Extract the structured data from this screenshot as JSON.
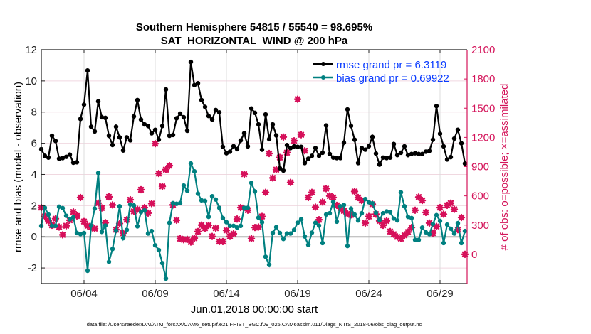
{
  "chart_data": {
    "type": "line",
    "title": "Southern Hemisphere 54815 / 55540 = 98.695%",
    "subtitle": "SAT_HORIZONTAL_WIND @ 200 hPa",
    "xlabel": "Jun.01,2018 00:00:00 start",
    "ylabel": "rmse and bias (model - observation)",
    "ylabel_right": "# of obs: o=possible; ×=assimilated",
    "x_start": "2018-06-01 00:00",
    "x_step_hours": 6,
    "x_ticks": [
      {
        "date": "2018-06-04",
        "label": "06/04"
      },
      {
        "date": "2018-06-09",
        "label": "06/09"
      },
      {
        "date": "2018-06-14",
        "label": "06/14"
      },
      {
        "date": "2018-06-19",
        "label": "06/19"
      },
      {
        "date": "2018-06-24",
        "label": "06/24"
      },
      {
        "date": "2018-06-29",
        "label": "06/29"
      }
    ],
    "ylim": [
      -3,
      12
    ],
    "yticks": [
      "-2",
      "0",
      "2",
      "4",
      "6",
      "8",
      "10",
      "12"
    ],
    "ylim_right": [
      -300,
      2100
    ],
    "yticks_right": [
      "0",
      "300",
      "600",
      "900",
      "1200",
      "1500",
      "1800",
      "2100"
    ],
    "grid": true,
    "legend_position": "top-right",
    "footer": "data file: /Users/raeder/DAI/ATM_forcXX/CAM6_setup/f.e21.FHIST_BGC.f09_025.CAM6assim.011/Diags_NTrS_2018-06/obs_diag_output.nc",
    "colors": {
      "rmse": "#000000",
      "bias": "#008080",
      "obs": "#d6105a",
      "legend_text": "#0a3cff",
      "right_axis": "#d4145a",
      "grid": "#f0d8e0",
      "zero_line": "#b0b0b0"
    },
    "series": [
      {
        "name": "rmse grand pr = 6.3119",
        "axis": "left",
        "values": [
          5.62,
          5.19,
          5.08,
          6.48,
          6.15,
          5.01,
          5.05,
          5.13,
          5.27,
          4.75,
          4.78,
          7.56,
          8.48,
          10.67,
          7.06,
          6.76,
          8.69,
          7.67,
          7.63,
          6.48,
          5.89,
          7.06,
          6.38,
          5.54,
          6.38,
          6.19,
          7.72,
          8.77,
          7.52,
          7.21,
          7.11,
          6.64,
          6.86,
          6.23,
          7.11,
          9.45,
          6.48,
          6.53,
          7.6,
          7.9,
          7.67,
          6.8,
          11.22,
          9.73,
          9.85,
          8.77,
          8.33,
          7.75,
          7.52,
          8.13,
          7.98,
          5.77,
          5.36,
          5.46,
          5.81,
          5.62,
          6.18,
          6.64,
          5.8,
          8.23,
          7.95,
          7.21,
          5.59,
          7.85,
          6.26,
          7.21,
          6.5,
          4.4,
          4.25,
          5.88,
          5.69,
          5.8,
          5.77,
          5.77,
          4.73,
          5.01,
          5.19,
          5.69,
          5.19,
          5.39,
          7.14,
          5.31,
          5.08,
          5.05,
          5.05,
          6.04,
          8.17,
          7.11,
          6.23,
          4.73,
          5.69,
          5.59,
          5.81,
          6.41,
          5.34,
          4.63,
          5.08,
          5.05,
          5.08,
          5.95,
          5.24,
          5.39,
          5.8,
          5.24,
          5.31,
          5.36,
          5.31,
          5.31,
          5.46,
          5.51,
          6.23,
          8.39,
          6.61,
          5.8,
          4.96,
          5.11,
          6.3,
          6.86,
          6.0,
          4.7
        ]
      },
      {
        "name": "bias grand pr = 0.69922",
        "axis": "left",
        "values": [
          0.7,
          1.86,
          1.43,
          0.7,
          0.7,
          1.93,
          1.84,
          1.35,
          1.13,
          1.25,
          0.24,
          0.17,
          0.24,
          -2.18,
          0.72,
          1.81,
          4.09,
          0.32,
          0.72,
          -1.61,
          -0.78,
          0.41,
          1.96,
          -0.09,
          0.44,
          2.07,
          2.01,
          0.67,
          1.58,
          1.69,
          0.21,
          0.37,
          -0.55,
          -0.85,
          -1.69,
          -2.68,
          0.9,
          2.16,
          2.12,
          2.16,
          3.29,
          2.95,
          4.7,
          4.2,
          2.77,
          2.34,
          2.3,
          1.28,
          2.6,
          2.39,
          1.86,
          1.2,
          0.94,
          0.7,
          0.7,
          0.59,
          0.7,
          1.86,
          1.86,
          3.46,
          2.91,
          1.23,
          0.93,
          -1.28,
          -1.8,
          0.24,
          0.62,
          0.24,
          -0.14,
          0.21,
          0.21,
          0.44,
          0.9,
          1.13,
          0.02,
          -0.52,
          0.26,
          0.9,
          0.72,
          -0.4,
          1.43,
          1.51,
          2.24,
          0.97,
          1.96,
          2.04,
          -0.59,
          1.81,
          1.43,
          1.05,
          1.51,
          2.42,
          2.22,
          2.15,
          1.54,
          1.08,
          1.51,
          1.63,
          1.58,
          1.17,
          1.05,
          2.85,
          1.96,
          1.28,
          1.2,
          -0.2,
          -0.2,
          0.59,
          0.29,
          0.17,
          0.82,
          1.39,
          1.02,
          -0.4,
          0.78,
          0.52,
          0.21,
          0.87,
          -0.4,
          0.37
        ]
      },
      {
        "name": "obs",
        "axis": "right",
        "marker": "star-and-circle",
        "values": [
          480,
          389,
          343,
          298,
          366,
          280,
          200,
          293,
          350,
          435,
          394,
          583,
          337,
          293,
          280,
          264,
          526,
          476,
          325,
          590,
          507,
          253,
          316,
          218,
          355,
          560,
          441,
          462,
          663,
          480,
          423,
          521,
          1136,
          830,
          698,
          869,
          910,
          507,
          350,
          161,
          150,
          154,
          126,
          165,
          234,
          300,
          269,
          298,
          184,
          269,
          131,
          131,
          246,
          184,
          211,
          362,
          480,
          823,
          453,
          161,
          275,
          280,
          389,
          636,
          1035,
          784,
          869,
          994,
          1204,
          1044,
          738,
          1165,
          1592,
          1227,
          1063,
          583,
          636,
          485,
          355,
          537,
          674,
          599,
          583,
          503,
          476,
          446,
          416,
          405,
          645,
          583,
          553,
          321,
          389,
          515,
          412,
          343,
          298,
          343,
          234,
          206,
          179,
          161,
          195,
          229,
          275,
          453,
          588,
          553,
          430,
          321,
          218,
          286,
          480,
          412,
          503,
          526,
          462,
          253,
          378,
          0
        ]
      }
    ]
  }
}
